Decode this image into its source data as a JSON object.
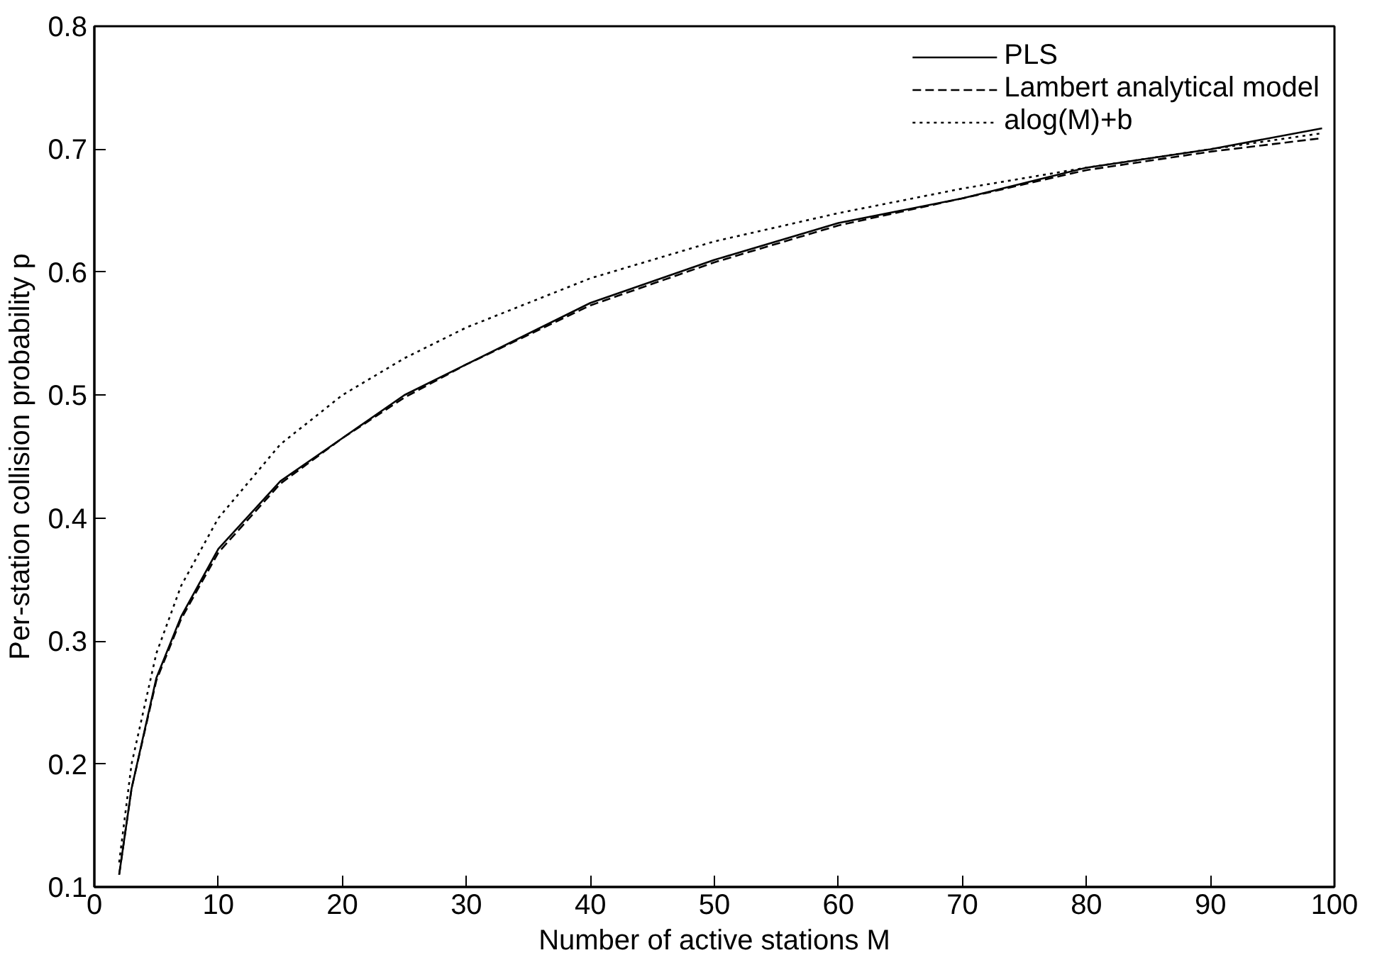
{
  "chart_data": {
    "type": "line",
    "xlabel": "Number of active stations M",
    "ylabel": "Per-station collision probability p",
    "xlim": [
      0,
      100
    ],
    "ylim": [
      0.1,
      0.8
    ],
    "xticks": [
      0,
      10,
      20,
      30,
      40,
      50,
      60,
      70,
      80,
      90,
      100
    ],
    "yticks": [
      0.1,
      0.2,
      0.3,
      0.4,
      0.5,
      0.6,
      0.7,
      0.8
    ],
    "grid": false,
    "legend": "top right",
    "x": [
      2,
      3,
      5,
      7,
      10,
      15,
      20,
      25,
      30,
      40,
      50,
      60,
      70,
      80,
      90,
      99
    ],
    "series": [
      {
        "name": "PLS",
        "color": "#000000",
        "line_style": "solid",
        "values": [
          0.11,
          0.18,
          0.27,
          0.32,
          0.375,
          0.43,
          0.465,
          0.5,
          0.525,
          0.575,
          0.61,
          0.64,
          0.66,
          0.685,
          0.7,
          0.717
        ]
      },
      {
        "name": "Lambert analytical model",
        "color": "#000000",
        "line_style": "dashed",
        "values": [
          0.11,
          0.18,
          0.268,
          0.318,
          0.372,
          0.428,
          0.465,
          0.498,
          0.525,
          0.573,
          0.608,
          0.638,
          0.66,
          0.683,
          0.698,
          0.709
        ]
      },
      {
        "name": "alog(M)+b",
        "color": "#000000",
        "line_style": "dotted",
        "values": [
          0.12,
          0.2,
          0.29,
          0.345,
          0.4,
          0.46,
          0.5,
          0.53,
          0.555,
          0.595,
          0.625,
          0.648,
          0.668,
          0.685,
          0.7,
          0.713
        ]
      }
    ]
  }
}
